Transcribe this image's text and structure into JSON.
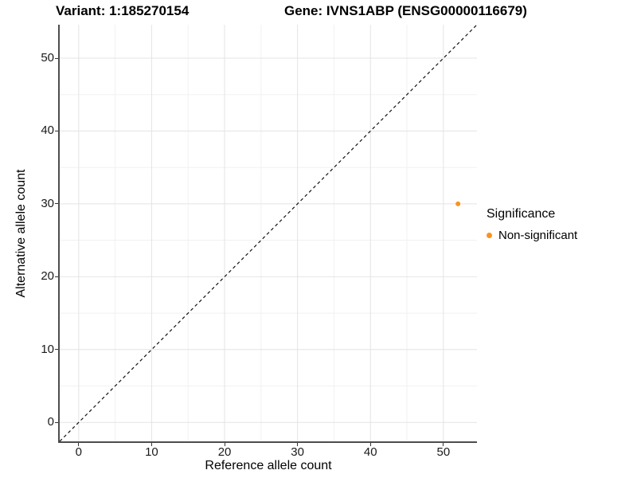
{
  "title": {
    "variant": "Variant: 1:185270154",
    "gene": "Gene: IVNS1ABP (ENSG00000116679)"
  },
  "axes": {
    "x_label": "Reference allele count",
    "y_label": "Alternative allele count"
  },
  "legend": {
    "title": "Significance",
    "position": "right",
    "items": [
      {
        "label": "Non-significant",
        "marker": "circle-icon",
        "color": "#F7941E"
      }
    ]
  },
  "colors": {
    "point": "#F7941E",
    "major_grid": "#E4E4E4",
    "minor_grid": "#F1F1F1",
    "axis_line": "#4d4d4d",
    "reference_line": "#111111",
    "text": "#000000"
  },
  "chart_data": {
    "type": "scatter",
    "title": "Variant: 1:185270154   Gene: IVNS1ABP (ENSG00000116679)",
    "xlabel": "Reference allele count",
    "ylabel": "Alternative allele count",
    "xlim": [
      -2.6,
      54.6
    ],
    "ylim": [
      -2.6,
      54.6
    ],
    "x_ticks": [
      0,
      10,
      20,
      30,
      40,
      50
    ],
    "y_ticks": [
      0,
      10,
      20,
      30,
      40,
      50
    ],
    "x_minor_ticks": [
      5,
      15,
      25,
      35,
      45
    ],
    "y_minor_ticks": [
      5,
      15,
      25,
      35,
      45
    ],
    "grid": true,
    "legend_position": "right",
    "reference_line": {
      "type": "identity",
      "slope": 1,
      "intercept": 0,
      "style": "dashed",
      "color": "#111111"
    },
    "series": [
      {
        "name": "Non-significant",
        "color": "#F7941E",
        "marker": "circle",
        "points": [
          {
            "x": 52,
            "y": 30
          }
        ]
      }
    ]
  }
}
